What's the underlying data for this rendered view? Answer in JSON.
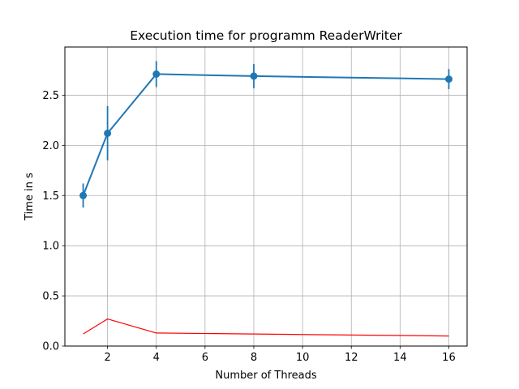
{
  "chart_data": {
    "type": "line",
    "title": "Execution time for programm ReaderWriter",
    "xlabel": "Number of Threads",
    "ylabel": "Time in s",
    "xlim": [
      0.25,
      16.75
    ],
    "ylim": [
      0,
      2.98
    ],
    "xticks": [
      2,
      4,
      6,
      8,
      10,
      12,
      14,
      16
    ],
    "yticks": [
      0.0,
      0.5,
      1.0,
      1.5,
      2.0,
      2.5
    ],
    "ytick_labels": [
      "0.0",
      "0.5",
      "1.0",
      "1.5",
      "2.0",
      "2.5"
    ],
    "grid": true,
    "series": [
      {
        "color": "#1f77b4",
        "marker": "circle",
        "x": [
          1,
          2,
          4,
          8,
          16
        ],
        "y": [
          1.5,
          2.12,
          2.71,
          2.69,
          2.66
        ],
        "error": [
          0.12,
          0.27,
          0.13,
          0.12,
          0.1
        ]
      },
      {
        "color": "#ff0000",
        "marker": "none",
        "x": [
          1,
          2,
          4,
          8,
          16
        ],
        "y": [
          0.12,
          0.27,
          0.13,
          0.12,
          0.1
        ]
      }
    ]
  }
}
